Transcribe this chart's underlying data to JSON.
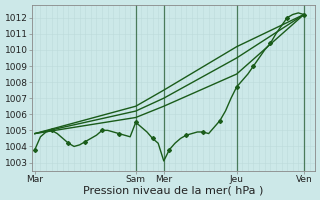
{
  "bg_color": "#cce8e8",
  "grid_color_major": "#aacfcf",
  "grid_color_minor": "#bddada",
  "line_color": "#1a5c1a",
  "xlabel": "Pression niveau de la mer( hPa )",
  "xlabel_fontsize": 8,
  "ylim": [
    1002.5,
    1012.8
  ],
  "yticks": [
    1003,
    1004,
    1005,
    1006,
    1007,
    1008,
    1009,
    1010,
    1011,
    1012
  ],
  "xtick_labels": [
    "Mar",
    "Sam",
    "Mer",
    "Jeu",
    "Ven"
  ],
  "xtick_positions": [
    0,
    18,
    23,
    36,
    48
  ],
  "vlines_x": [
    18,
    23,
    36,
    48
  ],
  "xlim": [
    -0.5,
    50
  ],
  "series1_x": [
    0,
    1,
    2,
    3,
    4,
    5,
    6,
    7,
    8,
    9,
    10,
    11,
    12,
    13,
    14,
    15,
    16,
    17,
    18,
    19,
    20,
    21,
    22,
    23,
    24,
    25,
    26,
    27,
    28,
    29,
    30,
    31,
    32,
    33,
    34,
    35,
    36,
    37,
    38,
    39,
    40,
    41,
    42,
    43,
    44,
    45,
    46,
    47,
    48
  ],
  "series1_y": [
    1003.8,
    1004.6,
    1004.9,
    1005.0,
    1004.8,
    1004.5,
    1004.2,
    1004.0,
    1004.1,
    1004.3,
    1004.5,
    1004.7,
    1005.0,
    1005.0,
    1004.9,
    1004.8,
    1004.7,
    1004.6,
    1005.5,
    1005.2,
    1004.9,
    1004.5,
    1004.2,
    1003.1,
    1003.8,
    1004.2,
    1004.5,
    1004.7,
    1004.8,
    1004.9,
    1004.9,
    1004.8,
    1005.2,
    1005.6,
    1006.2,
    1007.0,
    1007.7,
    1008.1,
    1008.5,
    1009.0,
    1009.5,
    1010.0,
    1010.4,
    1011.0,
    1011.5,
    1012.0,
    1012.2,
    1012.3,
    1012.2
  ],
  "series2_x": [
    0,
    18,
    23,
    36,
    48
  ],
  "series2_y": [
    1004.8,
    1005.8,
    1006.5,
    1008.5,
    1012.2
  ],
  "series3_x": [
    0,
    18,
    23,
    36,
    48
  ],
  "series3_y": [
    1004.8,
    1006.2,
    1007.0,
    1009.5,
    1012.2
  ],
  "series4_x": [
    0,
    18,
    23,
    36,
    48
  ],
  "series4_y": [
    1004.8,
    1006.5,
    1007.5,
    1010.2,
    1012.2
  ]
}
